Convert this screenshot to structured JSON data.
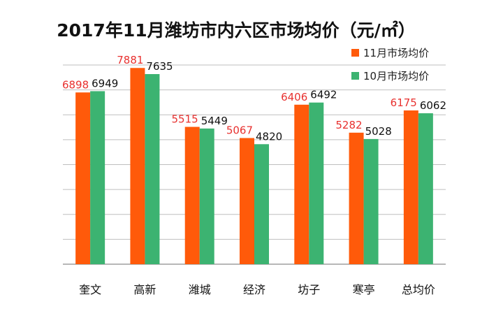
{
  "chart_data": {
    "type": "bar",
    "title": "2017年11月潍坊市内六区市场均价（元/㎡）",
    "categories": [
      "奎文",
      "高新",
      "潍城",
      "经济",
      "坊子",
      "寒亭",
      "总均价"
    ],
    "series": [
      {
        "name": "11月市场均价",
        "values": [
          6898,
          7881,
          5515,
          5067,
          6406,
          5282,
          6175
        ],
        "color": "#FF5A0A",
        "label_color": "#E8312F"
      },
      {
        "name": "10月市场均价",
        "values": [
          6949,
          7635,
          5449,
          4820,
          6492,
          5028,
          6062
        ],
        "color": "#3CB371",
        "label_color": "#111111"
      }
    ],
    "ylim": [
      0,
      8000
    ],
    "grid": true,
    "legend": "top-right",
    "xlabel": "",
    "ylabel": ""
  }
}
